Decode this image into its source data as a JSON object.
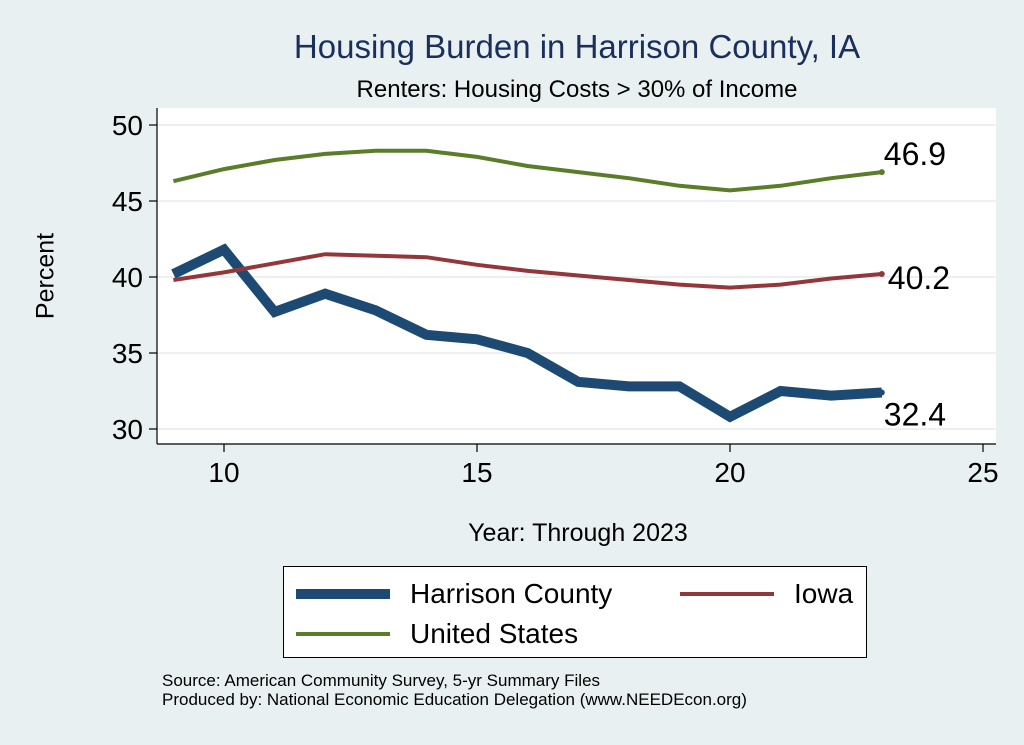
{
  "chart_data": {
    "type": "line",
    "title": "Housing Burden in Harrison County, IA",
    "subtitle": "Renters: Housing Costs > 30% of Income",
    "xlabel": "Year: Through 2023",
    "ylabel": "Percent",
    "xlim": [
      9,
      25
    ],
    "ylim": [
      30,
      50
    ],
    "xticks": [
      "10",
      "15",
      "20",
      "25"
    ],
    "yticks": [
      "30",
      "35",
      "40",
      "45",
      "50"
    ],
    "grid": true,
    "legend_position": "bottom",
    "series": [
      {
        "name": "Harrison County",
        "color": "#1d4a73",
        "x": [
          9,
          10,
          11,
          12,
          13,
          14,
          15,
          16,
          17,
          18,
          19,
          20,
          21,
          22,
          23
        ],
        "values": [
          40.2,
          41.8,
          37.7,
          38.9,
          37.8,
          36.2,
          35.9,
          35.0,
          33.1,
          32.8,
          32.8,
          30.8,
          32.5,
          32.2,
          32.4
        ],
        "end_label": "32.4"
      },
      {
        "name": "Iowa",
        "color": "#93373b",
        "x": [
          9,
          10,
          11,
          12,
          13,
          14,
          15,
          16,
          17,
          18,
          19,
          20,
          21,
          22,
          23
        ],
        "values": [
          39.8,
          40.3,
          40.9,
          41.5,
          41.4,
          41.3,
          40.8,
          40.4,
          40.1,
          39.8,
          39.5,
          39.3,
          39.5,
          39.9,
          40.2
        ],
        "end_label": "40.2"
      },
      {
        "name": "United States",
        "color": "#5a7d2a",
        "x": [
          9,
          10,
          11,
          12,
          13,
          14,
          15,
          16,
          17,
          18,
          19,
          20,
          21,
          22,
          23
        ],
        "values": [
          46.3,
          47.1,
          47.7,
          48.1,
          48.3,
          48.3,
          47.9,
          47.3,
          46.9,
          46.5,
          46.0,
          45.7,
          46.0,
          46.5,
          46.9
        ],
        "end_label": "46.9"
      }
    ]
  },
  "source_line": "Source: American Community Survey, 5-yr Summary Files",
  "produced_line": "Produced by: National Economic Education Delegation (www.NEEDEcon.org)"
}
